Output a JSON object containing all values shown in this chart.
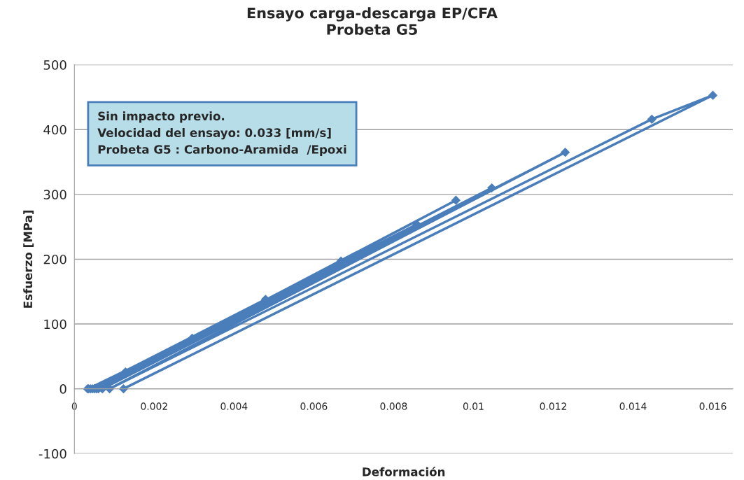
{
  "chart_data": {
    "type": "line",
    "title": "Ensayo carga-descarga EP/CFA\nProbeta G5",
    "xlabel": "Deformación",
    "ylabel": "Esfuerzo [MPa]",
    "annotations": [
      "Sin impacto previo.\nVelocidad del ensayo: 0.033 [mm/s]\nProbeta G5 : Carbono-Aramida  /Epoxi"
    ],
    "series": [
      {
        "color": "#4a7ebb",
        "x": [
          0.00033,
          0.00128,
          0.00035,
          0.00295,
          0.0004,
          0.00479,
          0.00045,
          0.00668,
          0.0005,
          0.00858,
          0.00055,
          0.00956,
          0.0006,
          0.01046,
          0.0007,
          0.0123,
          0.00088,
          0.01447,
          0.016,
          0.00123
        ],
        "values": [
          0,
          26,
          0,
          78,
          0,
          138,
          0,
          197,
          0,
          254,
          0,
          291,
          0,
          310,
          0,
          365,
          0,
          416,
          453,
          0
        ]
      }
    ],
    "xlim": [
      0,
      0.0165
    ],
    "xticks": [
      0,
      0.002,
      0.004,
      0.006,
      0.008,
      0.01,
      0.012,
      0.014,
      0.016
    ],
    "ylim": [
      -100,
      500
    ],
    "yticks": [
      -100,
      0,
      100,
      200,
      300,
      400,
      500
    ],
    "grid": "y",
    "marker": "diamond",
    "line_style": "solid"
  }
}
